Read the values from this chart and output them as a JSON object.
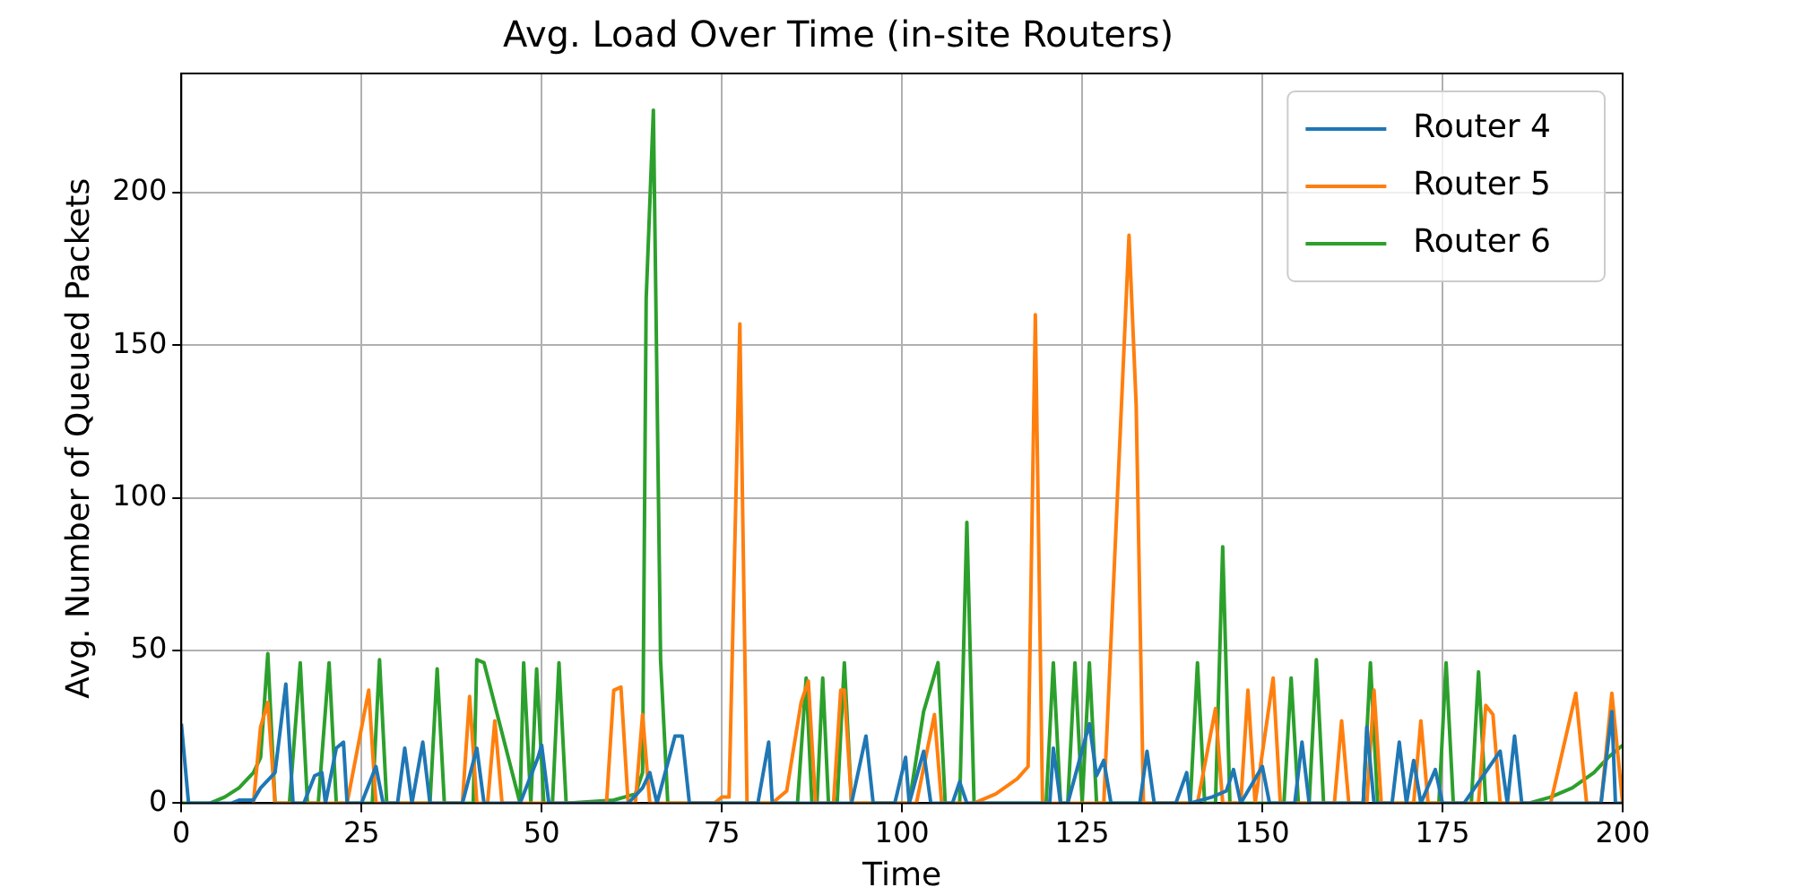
{
  "chart_data": {
    "type": "line",
    "title": "Avg. Load Over Time (in-site Routers)",
    "xlabel": "Time",
    "ylabel": "Avg. Number of Queued Packets",
    "xlim": [
      0,
      200
    ],
    "xticks": [
      0,
      25,
      50,
      75,
      100,
      125,
      150,
      175,
      200
    ],
    "ylim": [
      0,
      239
    ],
    "yticks": [
      0,
      50,
      100,
      150,
      200
    ],
    "grid": true,
    "legend": "top right",
    "marker": "none",
    "line_style": "solid",
    "series": [
      {
        "name": "Router 4",
        "color": "#1f77b4",
        "x": [
          0,
          1,
          7,
          8,
          10,
          11,
          13,
          14.5,
          15.5,
          17,
          18.5,
          19.5,
          20,
          21.5,
          22.5,
          23,
          25,
          27,
          28,
          30,
          31,
          32,
          33.5,
          34.5,
          39,
          41,
          42,
          47,
          49.5,
          50,
          51,
          62,
          64,
          65,
          66,
          68.5,
          69.5,
          70.5,
          80,
          81.5,
          82,
          93,
          95,
          96,
          99,
          100.5,
          101,
          103,
          104,
          107,
          108,
          109,
          120.5,
          121,
          122,
          123,
          126,
          127,
          128,
          129,
          133,
          134,
          135,
          138,
          139.5,
          140,
          143,
          145,
          146,
          147,
          150,
          151,
          154.5,
          155.5,
          156.5,
          164,
          164.5,
          165.5,
          168,
          169,
          170,
          171,
          172,
          174,
          175,
          178,
          183,
          184,
          185,
          186,
          197,
          198.5,
          199,
          200
        ],
        "values": [
          26,
          0,
          0,
          1,
          1,
          5,
          10,
          39,
          0,
          0,
          9,
          10,
          0,
          18,
          20,
          0,
          0,
          12,
          0,
          0,
          18,
          0,
          20,
          0,
          0,
          18,
          0,
          0,
          15,
          19,
          0,
          0,
          5,
          10,
          0,
          22,
          22,
          0,
          0,
          20,
          0,
          0,
          22,
          0,
          0,
          15,
          0,
          17,
          0,
          0,
          7,
          0,
          0,
          18,
          0,
          0,
          26,
          9,
          14,
          0,
          0,
          17,
          0,
          0,
          10,
          0,
          2,
          4,
          11,
          0,
          12,
          0,
          0,
          20,
          0,
          0,
          25,
          0,
          0,
          20,
          0,
          14,
          0,
          11,
          0,
          0,
          17,
          0,
          22,
          0,
          0,
          30,
          0,
          0
        ]
      },
      {
        "name": "Router 5",
        "color": "#ff7f0e",
        "x": [
          10,
          11,
          12,
          13,
          23,
          26,
          27,
          39,
          40,
          41,
          42.5,
          43.5,
          44.5,
          59,
          60,
          61,
          62,
          63,
          64,
          65,
          74,
          75,
          76,
          77.5,
          78.5,
          82,
          83,
          84,
          86,
          87,
          88,
          90.5,
          91.5,
          92,
          93,
          102,
          104.5,
          105.5,
          110,
          113,
          116,
          117.5,
          118.5,
          119.5,
          128,
          131.5,
          132.5,
          133.5,
          141,
          143.5,
          144.5,
          147,
          148,
          149,
          151.5,
          152.5,
          160,
          161,
          162,
          164.5,
          165.5,
          166.5,
          171,
          172,
          173,
          180,
          181,
          182,
          183,
          190,
          193.5,
          195,
          197,
          198.5,
          200
        ],
        "values": [
          0,
          25,
          33,
          0,
          0,
          37,
          0,
          0,
          35,
          0,
          0,
          27,
          0,
          0,
          37,
          38,
          0,
          0,
          29,
          0,
          0,
          2,
          2,
          157,
          0,
          0,
          2,
          4,
          33,
          40,
          0,
          0,
          37,
          37,
          0,
          0,
          29,
          0,
          0,
          3,
          8,
          12,
          160,
          0,
          0,
          186,
          130,
          0,
          0,
          31,
          0,
          0,
          37,
          0,
          41,
          0,
          0,
          27,
          0,
          0,
          37,
          0,
          0,
          27,
          0,
          0,
          32,
          29,
          0,
          0,
          36,
          0,
          0,
          36,
          0
        ]
      },
      {
        "name": "Router 6",
        "color": "#2ca02c",
        "x": [
          0,
          4,
          6,
          8,
          10,
          11,
          12,
          13,
          15,
          16.5,
          17.5,
          19,
          20.5,
          21.5,
          26.5,
          27.5,
          28.5,
          34.5,
          35.5,
          36.5,
          40.5,
          41,
          42,
          47,
          47.5,
          48.5,
          49.3,
          50.3,
          51.5,
          52.4,
          53.4,
          60,
          63,
          64,
          64.5,
          65.5,
          66.5,
          67.5,
          85.5,
          86.7,
          87.5,
          88.2,
          89,
          89.8,
          91,
          92,
          93,
          101,
          103,
          105,
          106,
          108,
          109,
          110,
          120,
          121,
          122,
          123,
          124,
          125,
          126,
          127,
          140,
          141,
          142,
          143.5,
          144.5,
          145.5,
          153,
          154,
          155,
          156.5,
          157.5,
          158.5,
          164,
          165,
          166,
          174.5,
          175.5,
          176.5,
          179,
          180,
          181,
          187,
          190,
          193,
          196,
          198,
          200
        ],
        "values": [
          0,
          0,
          2,
          5,
          10,
          15,
          49,
          0,
          0,
          46,
          0,
          0,
          46,
          0,
          0,
          47,
          0,
          0,
          44,
          0,
          0,
          47,
          46,
          0,
          46,
          0,
          44,
          0,
          0,
          46,
          0,
          1,
          3,
          10,
          165,
          227,
          47,
          0,
          0,
          41,
          0,
          0,
          41,
          0,
          0,
          46,
          0,
          0,
          30,
          46,
          0,
          0,
          92,
          0,
          0,
          46,
          0,
          0,
          46,
          0,
          46,
          0,
          0,
          46,
          0,
          0,
          84,
          0,
          0,
          41,
          0,
          0,
          47,
          0,
          0,
          46,
          0,
          0,
          46,
          0,
          0,
          43,
          0,
          0,
          2,
          5,
          10,
          15,
          19
        ]
      }
    ]
  }
}
